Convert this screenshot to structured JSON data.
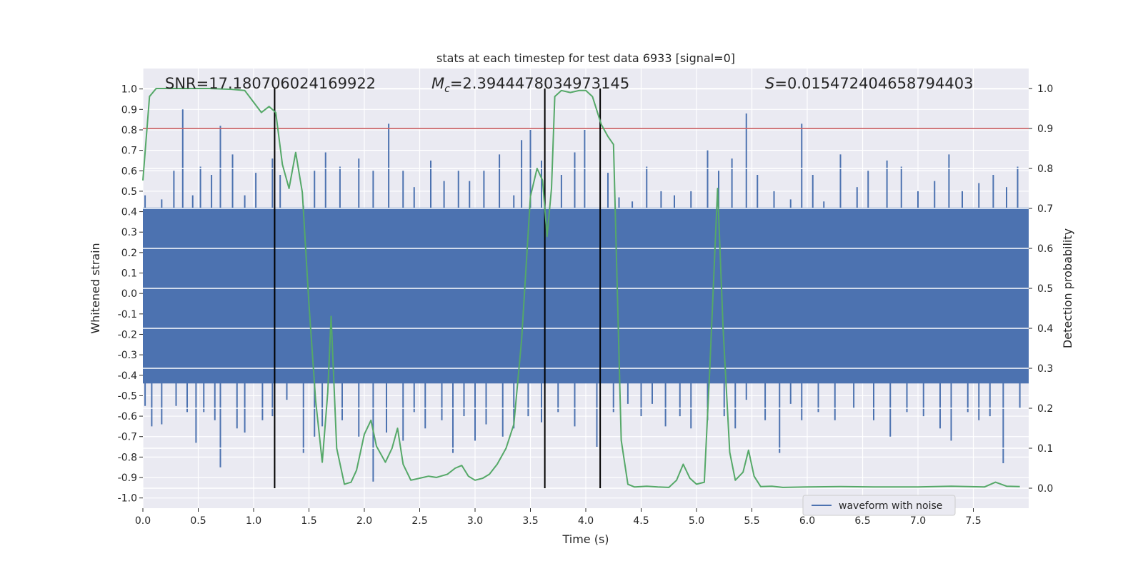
{
  "chart_data": {
    "type": "line",
    "title": "stats at each timestep for test data 6933 [signal=0]",
    "xlabel": "Time (s)",
    "ylabel": "Whitened strain",
    "y2label": "Detection probability",
    "xlim": [
      0.0,
      8.0
    ],
    "ylim": [
      -1.05,
      1.1
    ],
    "y2lim": [
      -0.05,
      1.05
    ],
    "xticks": [
      "0.0",
      "0.5",
      "1.0",
      "1.5",
      "2.0",
      "2.5",
      "3.0",
      "3.5",
      "4.0",
      "4.5",
      "5.0",
      "5.5",
      "6.0",
      "6.5",
      "7.0",
      "7.5"
    ],
    "yticks": [
      "-1.0",
      "-0.9",
      "-0.8",
      "-0.7",
      "-0.6",
      "-0.5",
      "-0.4",
      "-0.3",
      "-0.2",
      "-0.1",
      "0.0",
      "0.1",
      "0.2",
      "0.3",
      "0.4",
      "0.5",
      "0.6",
      "0.7",
      "0.8",
      "0.9",
      "1.0"
    ],
    "y2ticks": [
      "0.0",
      "0.1",
      "0.2",
      "0.3",
      "0.4",
      "0.5",
      "0.6",
      "0.7",
      "0.8",
      "0.9",
      "1.0"
    ],
    "annotations": {
      "snr": "SNR=17.180706024169922",
      "mc_symbol": "M",
      "mc_sub": "c",
      "mc_value": "=2.3944478034973145",
      "s_symbol": "S",
      "s_value": "=0.015472404658794403"
    },
    "legend": [
      "waveform with noise"
    ],
    "threshold_prob": 0.9,
    "vertical_lines_s": [
      1.19,
      3.63,
      4.13
    ],
    "spikes_pos": [
      [
        0.02,
        0.48
      ],
      [
        0.17,
        0.46
      ],
      [
        0.28,
        0.6
      ],
      [
        0.36,
        0.9
      ],
      [
        0.45,
        0.48
      ],
      [
        0.52,
        0.62
      ],
      [
        0.62,
        0.58
      ],
      [
        0.7,
        0.82
      ],
      [
        0.81,
        0.68
      ],
      [
        0.92,
        0.48
      ],
      [
        1.02,
        0.59
      ],
      [
        1.17,
        0.66
      ],
      [
        1.24,
        0.58
      ],
      [
        1.45,
        0.43
      ],
      [
        1.55,
        0.6
      ],
      [
        1.65,
        0.69
      ],
      [
        1.78,
        0.62
      ],
      [
        1.95,
        0.66
      ],
      [
        2.08,
        0.6
      ],
      [
        2.22,
        0.83
      ],
      [
        2.35,
        0.6
      ],
      [
        2.45,
        0.52
      ],
      [
        2.6,
        0.65
      ],
      [
        2.72,
        0.55
      ],
      [
        2.85,
        0.6
      ],
      [
        2.95,
        0.55
      ],
      [
        3.08,
        0.6
      ],
      [
        3.22,
        0.68
      ],
      [
        3.35,
        0.48
      ],
      [
        3.42,
        0.75
      ],
      [
        3.5,
        0.8
      ],
      [
        3.6,
        0.65
      ],
      [
        3.78,
        0.58
      ],
      [
        3.9,
        0.69
      ],
      [
        3.99,
        0.8
      ],
      [
        4.2,
        0.59
      ],
      [
        4.3,
        0.47
      ],
      [
        4.42,
        0.45
      ],
      [
        4.55,
        0.62
      ],
      [
        4.68,
        0.5
      ],
      [
        4.8,
        0.48
      ],
      [
        4.95,
        0.5
      ],
      [
        5.1,
        0.7
      ],
      [
        5.2,
        0.6
      ],
      [
        5.32,
        0.66
      ],
      [
        5.45,
        0.88
      ],
      [
        5.55,
        0.58
      ],
      [
        5.7,
        0.5
      ],
      [
        5.85,
        0.46
      ],
      [
        5.95,
        0.83
      ],
      [
        6.05,
        0.58
      ],
      [
        6.15,
        0.45
      ],
      [
        6.3,
        0.68
      ],
      [
        6.45,
        0.52
      ],
      [
        6.55,
        0.6
      ],
      [
        6.72,
        0.65
      ],
      [
        6.85,
        0.62
      ],
      [
        7.0,
        0.5
      ],
      [
        7.15,
        0.55
      ],
      [
        7.28,
        0.68
      ],
      [
        7.4,
        0.5
      ],
      [
        7.55,
        0.54
      ],
      [
        7.68,
        0.58
      ],
      [
        7.8,
        0.52
      ],
      [
        7.9,
        0.62
      ]
    ],
    "spikes_neg": [
      [
        0.02,
        -0.55
      ],
      [
        0.08,
        -0.65
      ],
      [
        0.17,
        -0.64
      ],
      [
        0.3,
        -0.55
      ],
      [
        0.4,
        -0.58
      ],
      [
        0.48,
        -0.73
      ],
      [
        0.55,
        -0.58
      ],
      [
        0.65,
        -0.62
      ],
      [
        0.7,
        -0.85
      ],
      [
        0.85,
        -0.66
      ],
      [
        0.92,
        -0.68
      ],
      [
        1.08,
        -0.62
      ],
      [
        1.17,
        -0.6
      ],
      [
        1.3,
        -0.52
      ],
      [
        1.45,
        -0.78
      ],
      [
        1.55,
        -0.7
      ],
      [
        1.62,
        -0.65
      ],
      [
        1.8,
        -0.62
      ],
      [
        1.95,
        -0.7
      ],
      [
        2.08,
        -0.92
      ],
      [
        2.2,
        -0.68
      ],
      [
        2.35,
        -0.72
      ],
      [
        2.45,
        -0.58
      ],
      [
        2.55,
        -0.66
      ],
      [
        2.7,
        -0.62
      ],
      [
        2.8,
        -0.78
      ],
      [
        2.9,
        -0.6
      ],
      [
        3.0,
        -0.72
      ],
      [
        3.1,
        -0.64
      ],
      [
        3.25,
        -0.7
      ],
      [
        3.35,
        -0.66
      ],
      [
        3.48,
        -0.6
      ],
      [
        3.6,
        -0.63
      ],
      [
        3.75,
        -0.58
      ],
      [
        3.9,
        -0.65
      ],
      [
        4.1,
        -0.75
      ],
      [
        4.25,
        -0.58
      ],
      [
        4.38,
        -0.54
      ],
      [
        4.5,
        -0.6
      ],
      [
        4.6,
        -0.54
      ],
      [
        4.72,
        -0.65
      ],
      [
        4.85,
        -0.6
      ],
      [
        4.95,
        -0.66
      ],
      [
        5.1,
        -0.62
      ],
      [
        5.25,
        -0.6
      ],
      [
        5.35,
        -0.66
      ],
      [
        5.45,
        -0.52
      ],
      [
        5.62,
        -0.62
      ],
      [
        5.75,
        -0.78
      ],
      [
        5.85,
        -0.54
      ],
      [
        5.95,
        -0.62
      ],
      [
        6.1,
        -0.58
      ],
      [
        6.25,
        -0.62
      ],
      [
        6.42,
        -0.56
      ],
      [
        6.6,
        -0.62
      ],
      [
        6.75,
        -0.7
      ],
      [
        6.9,
        -0.58
      ],
      [
        7.05,
        -0.6
      ],
      [
        7.2,
        -0.66
      ],
      [
        7.3,
        -0.72
      ],
      [
        7.45,
        -0.58
      ],
      [
        7.55,
        -0.62
      ],
      [
        7.65,
        -0.6
      ],
      [
        7.77,
        -0.83
      ],
      [
        7.92,
        -0.56
      ]
    ],
    "detection_probability": [
      [
        0.0,
        0.77
      ],
      [
        0.06,
        0.98
      ],
      [
        0.12,
        1.0
      ],
      [
        0.3,
        1.0
      ],
      [
        0.6,
        1.0
      ],
      [
        0.8,
        0.998
      ],
      [
        0.92,
        0.995
      ],
      [
        1.07,
        0.94
      ],
      [
        1.14,
        0.955
      ],
      [
        1.2,
        0.94
      ],
      [
        1.26,
        0.81
      ],
      [
        1.32,
        0.75
      ],
      [
        1.38,
        0.84
      ],
      [
        1.44,
        0.74
      ],
      [
        1.5,
        0.46
      ],
      [
        1.56,
        0.22
      ],
      [
        1.62,
        0.065
      ],
      [
        1.67,
        0.24
      ],
      [
        1.7,
        0.43
      ],
      [
        1.75,
        0.1
      ],
      [
        1.82,
        0.01
      ],
      [
        1.88,
        0.015
      ],
      [
        1.93,
        0.045
      ],
      [
        2.0,
        0.135
      ],
      [
        2.06,
        0.17
      ],
      [
        2.11,
        0.105
      ],
      [
        2.19,
        0.065
      ],
      [
        2.25,
        0.1
      ],
      [
        2.3,
        0.15
      ],
      [
        2.35,
        0.06
      ],
      [
        2.42,
        0.02
      ],
      [
        2.5,
        0.025
      ],
      [
        2.58,
        0.03
      ],
      [
        2.65,
        0.027
      ],
      [
        2.75,
        0.035
      ],
      [
        2.82,
        0.05
      ],
      [
        2.88,
        0.057
      ],
      [
        2.94,
        0.03
      ],
      [
        3.0,
        0.02
      ],
      [
        3.07,
        0.025
      ],
      [
        3.13,
        0.035
      ],
      [
        3.2,
        0.06
      ],
      [
        3.28,
        0.1
      ],
      [
        3.35,
        0.16
      ],
      [
        3.42,
        0.37
      ],
      [
        3.5,
        0.73
      ],
      [
        3.56,
        0.8
      ],
      [
        3.61,
        0.77
      ],
      [
        3.65,
        0.63
      ],
      [
        3.69,
        0.75
      ],
      [
        3.72,
        0.98
      ],
      [
        3.78,
        0.995
      ],
      [
        3.86,
        0.99
      ],
      [
        3.94,
        0.995
      ],
      [
        4.0,
        0.995
      ],
      [
        4.06,
        0.98
      ],
      [
        4.14,
        0.91
      ],
      [
        4.2,
        0.88
      ],
      [
        4.25,
        0.86
      ],
      [
        4.32,
        0.12
      ],
      [
        4.38,
        0.01
      ],
      [
        4.44,
        0.003
      ],
      [
        4.55,
        0.005
      ],
      [
        4.65,
        0.003
      ],
      [
        4.75,
        0.002
      ],
      [
        4.82,
        0.02
      ],
      [
        4.88,
        0.06
      ],
      [
        4.94,
        0.025
      ],
      [
        5.0,
        0.01
      ],
      [
        5.07,
        0.015
      ],
      [
        5.12,
        0.3
      ],
      [
        5.19,
        0.75
      ],
      [
        5.24,
        0.4
      ],
      [
        5.3,
        0.09
      ],
      [
        5.35,
        0.02
      ],
      [
        5.42,
        0.04
      ],
      [
        5.47,
        0.095
      ],
      [
        5.52,
        0.03
      ],
      [
        5.58,
        0.004
      ],
      [
        5.68,
        0.005
      ],
      [
        5.78,
        0.002
      ],
      [
        6.0,
        0.003
      ],
      [
        6.3,
        0.004
      ],
      [
        6.6,
        0.003
      ],
      [
        7.0,
        0.003
      ],
      [
        7.3,
        0.005
      ],
      [
        7.6,
        0.003
      ],
      [
        7.7,
        0.015
      ],
      [
        7.8,
        0.005
      ],
      [
        7.92,
        0.004
      ]
    ]
  },
  "colors": {
    "background": "#eaeaf2",
    "grid": "#ffffff",
    "strain": "#4c72b0",
    "probability": "#55a868",
    "threshold": "#c44e52",
    "vline": "#000000"
  }
}
